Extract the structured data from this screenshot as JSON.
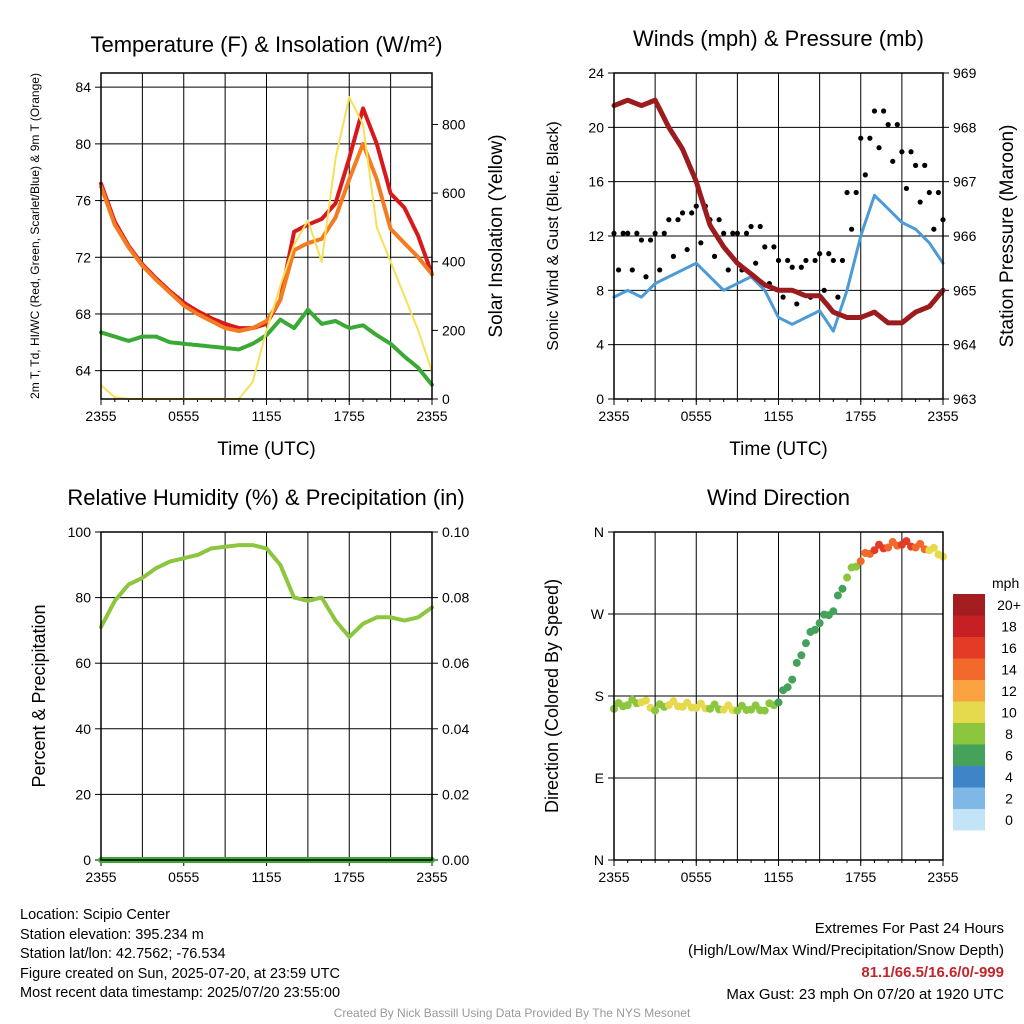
{
  "chart_data": [
    {
      "type": "line",
      "title": "Temperature (F) & Insolation (W/m²)",
      "xlabel": "Time (UTC)",
      "ylabel_left": "2m T, Td, HI/WC (Red, Green, Scarlet/Blue) & 9m T (Orange)",
      "ylabel_right": "Solar Insolation (Yellow)",
      "x_ticks": [
        "2355",
        "0555",
        "1155",
        "1755",
        "2355"
      ],
      "y_left_range": [
        62,
        85
      ],
      "y_left_ticks": [
        64,
        68,
        72,
        76,
        80,
        84
      ],
      "y_right_range": [
        0,
        950
      ],
      "y_right_ticks": [
        0,
        200,
        400,
        600,
        800
      ],
      "x_hours": [
        0,
        1,
        2,
        3,
        4,
        5,
        6,
        7,
        8,
        9,
        10,
        11,
        12,
        13,
        14,
        15,
        16,
        17,
        18,
        19,
        20,
        21,
        22,
        23,
        24
      ],
      "series": [
        {
          "name": "2m T",
          "color": "#d7191c",
          "axis": "left",
          "values": [
            77.2,
            74.5,
            72.8,
            71.5,
            70.5,
            69.6,
            68.8,
            68.2,
            67.7,
            67.3,
            67.0,
            67.0,
            67.3,
            69.0,
            73.8,
            74.3,
            74.7,
            75.8,
            79.0,
            82.5,
            80.0,
            76.5,
            75.5,
            73.5,
            70.8
          ]
        },
        {
          "name": "9m T",
          "color": "#f47b20",
          "axis": "left",
          "values": [
            77.0,
            74.3,
            72.7,
            71.4,
            70.4,
            69.5,
            68.6,
            68.0,
            67.5,
            67.0,
            66.8,
            67.0,
            67.5,
            69.0,
            72.5,
            73.0,
            73.3,
            74.8,
            77.5,
            80.0,
            77.5,
            74.0,
            73.0,
            72.0,
            70.8
          ]
        },
        {
          "name": "Td",
          "color": "#3aaa35",
          "axis": "left",
          "values": [
            66.7,
            66.4,
            66.1,
            66.4,
            66.4,
            66.0,
            65.9,
            65.8,
            65.7,
            65.6,
            65.5,
            65.9,
            66.5,
            67.6,
            67.0,
            68.3,
            67.3,
            67.5,
            67.0,
            67.2,
            66.5,
            65.9,
            65.0,
            64.2,
            63.0
          ]
        },
        {
          "name": "Solar Insolation",
          "color": "#f6e05a",
          "axis": "right",
          "values": [
            40,
            5,
            0,
            0,
            0,
            0,
            0,
            0,
            0,
            0,
            0,
            50,
            200,
            330,
            450,
            520,
            400,
            700,
            880,
            800,
            500,
            400,
            300,
            200,
            80
          ]
        }
      ]
    },
    {
      "type": "line",
      "title": "Winds (mph) & Pressure (mb)",
      "xlabel": "Time (UTC)",
      "ylabel_left": "Sonic Wind & Gust (Blue, Black)",
      "ylabel_right": "Station Pressure (Maroon)",
      "x_ticks": [
        "2355",
        "0555",
        "1155",
        "1755",
        "2355"
      ],
      "y_left_range": [
        0,
        24
      ],
      "y_left_ticks": [
        0,
        4,
        8,
        12,
        16,
        20,
        24
      ],
      "y_right_range": [
        963,
        969
      ],
      "y_right_ticks": [
        963,
        964,
        965,
        966,
        967,
        968,
        969
      ],
      "x_hours": [
        0,
        1,
        2,
        3,
        4,
        5,
        6,
        7,
        8,
        9,
        10,
        11,
        12,
        13,
        14,
        15,
        16,
        17,
        18,
        19,
        20,
        21,
        22,
        23,
        24
      ],
      "series": [
        {
          "name": "Sonic Wind",
          "color": "#4d9bd6",
          "axis": "left",
          "values": [
            7.5,
            8.0,
            7.5,
            8.5,
            9.0,
            9.5,
            10.0,
            9.0,
            8.0,
            8.5,
            9.0,
            8.0,
            6.0,
            5.5,
            6.0,
            6.5,
            5.0,
            8.0,
            12.0,
            15.0,
            14.0,
            13.0,
            12.5,
            11.5,
            10.0
          ]
        },
        {
          "name": "Gust",
          "color": "#000000",
          "axis": "left",
          "values": [
            11,
            11,
            10.5,
            11,
            12,
            12.5,
            13,
            12,
            11,
            11,
            11.5,
            10,
            9,
            8.5,
            9,
            9.5,
            9,
            14,
            18,
            20,
            19,
            17,
            16,
            14,
            12
          ]
        },
        {
          "name": "Station Pressure",
          "color": "#9b1b1e",
          "axis": "right",
          "values": [
            968.4,
            968.5,
            968.4,
            968.5,
            968.0,
            967.6,
            967.0,
            966.2,
            965.8,
            965.5,
            965.3,
            965.1,
            965.0,
            965.0,
            964.9,
            964.9,
            964.6,
            964.5,
            964.5,
            964.6,
            964.4,
            964.4,
            964.6,
            964.7,
            965.0
          ]
        }
      ]
    },
    {
      "type": "line",
      "title": "Relative Humidity (%) & Precipitation (in)",
      "xlabel": "",
      "ylabel_left": "Percent & Precipitation",
      "x_ticks": [
        "2355",
        "0555",
        "1155",
        "1755",
        "2355"
      ],
      "y_left_range": [
        0,
        100
      ],
      "y_left_ticks": [
        0,
        20,
        40,
        60,
        80,
        100
      ],
      "y_right_range": [
        0,
        0.1
      ],
      "y_right_ticks": [
        "0.00",
        "0.02",
        "0.04",
        "0.06",
        "0.08",
        "0.10"
      ],
      "x_hours": [
        0,
        1,
        2,
        3,
        4,
        5,
        6,
        7,
        8,
        9,
        10,
        11,
        12,
        13,
        14,
        15,
        16,
        17,
        18,
        19,
        20,
        21,
        22,
        23,
        24
      ],
      "series": [
        {
          "name": "Relative Humidity",
          "color": "#8cc63f",
          "axis": "left",
          "values": [
            71,
            79,
            84,
            86,
            89,
            91,
            92,
            93,
            95,
            95.5,
            96,
            96,
            95,
            90,
            80,
            79,
            80,
            73,
            68,
            72,
            74,
            74,
            73,
            74,
            77
          ]
        },
        {
          "name": "Precipitation",
          "color": "#3aaa35",
          "axis": "right",
          "values": [
            0,
            0,
            0,
            0,
            0,
            0,
            0,
            0,
            0,
            0,
            0,
            0,
            0,
            0,
            0,
            0,
            0,
            0,
            0,
            0,
            0,
            0,
            0,
            0,
            0
          ]
        }
      ]
    },
    {
      "type": "scatter",
      "title": "Wind Direction",
      "xlabel": "",
      "ylabel_left": "Direction (Colored By Speed)",
      "x_ticks": [
        "2355",
        "0555",
        "1155",
        "1755",
        "2355"
      ],
      "y_left_range": [
        0,
        360
      ],
      "y_left_tick_values": [
        0,
        90,
        180,
        270,
        360
      ],
      "y_left_ticks": [
        "N",
        "E",
        "S",
        "W",
        "N"
      ],
      "x_hours": [
        0,
        1,
        2,
        3,
        4,
        5,
        6,
        7,
        8,
        9,
        10,
        11,
        12,
        13,
        14,
        15,
        16,
        17,
        18,
        19,
        20,
        21,
        22,
        23,
        24
      ],
      "direction": [
        168,
        172,
        175,
        166,
        172,
        170,
        169,
        168,
        167,
        166,
        167,
        166,
        175,
        200,
        240,
        262,
        275,
        312,
        330,
        342,
        345,
        348,
        345,
        342,
        335
      ],
      "speed": [
        7,
        8,
        9,
        8,
        9,
        10,
        9,
        8,
        9,
        8,
        8,
        7,
        5,
        5,
        6,
        6,
        5,
        8,
        13,
        15,
        14,
        15,
        13,
        10,
        9
      ],
      "legend_title": "mph",
      "legend_labels": [
        "20+",
        "18",
        "16",
        "14",
        "12",
        "10",
        "8",
        "6",
        "4",
        "2",
        "0"
      ],
      "legend_colors": [
        "#a31c1f",
        "#c62025",
        "#e33b26",
        "#f2692b",
        "#f9a23f",
        "#e5d94e",
        "#8cc63f",
        "#45a25a",
        "#3d85c6",
        "#7fb8e6",
        "#c3e4f7"
      ]
    }
  ],
  "footer": {
    "location": "Location: Scipio Center",
    "elevation": "Station elevation: 395.234 m",
    "latlon": "Station lat/lon: 42.7562; -76.534",
    "created": "Figure created on Sun, 2025-07-20, at 23:59 UTC",
    "recent": "Most recent data timestamp: 2025/07/20 23:55:00",
    "extremes_title": "Extremes For Past 24 Hours",
    "extremes_sub": "(High/Low/Max Wind/Precipitation/Snow Depth)",
    "extremes_values": "81.1/66.5/16.6/0/-999",
    "max_gust": "Max Gust: 23 mph On 07/20 at 1920 UTC",
    "credit": "Created By Nick Bassill Using Data Provided By The NYS Mesonet"
  }
}
